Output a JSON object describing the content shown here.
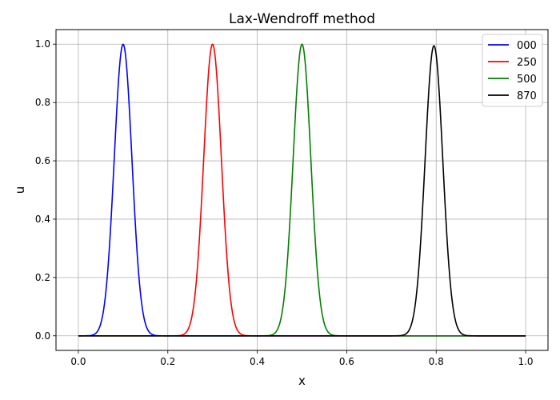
{
  "chart_data": {
    "type": "line",
    "title": "Lax-Wendroff method",
    "xlabel": "x",
    "ylabel": "u",
    "xlim": [
      -0.05,
      1.05
    ],
    "ylim": [
      -0.05,
      1.05
    ],
    "xticks": [
      0.0,
      0.2,
      0.4,
      0.6,
      0.8,
      1.0
    ],
    "xtick_labels": [
      "0.0",
      "0.2",
      "0.4",
      "0.6",
      "0.8",
      "1.0"
    ],
    "yticks": [
      0.0,
      0.2,
      0.4,
      0.6,
      0.8,
      1.0
    ],
    "ytick_labels": [
      "0.0",
      "0.2",
      "0.4",
      "0.6",
      "0.8",
      "1.0"
    ],
    "grid": true,
    "legend_position": "top-right",
    "series": [
      {
        "name": "000",
        "color": "#0000ff",
        "center": 0.1,
        "peak": 1.0,
        "width": 0.028
      },
      {
        "name": "250",
        "color": "#ff0000",
        "center": 0.3,
        "peak": 1.0,
        "width": 0.028
      },
      {
        "name": "500",
        "color": "#008000",
        "center": 0.5,
        "peak": 1.0,
        "width": 0.028
      },
      {
        "name": "870",
        "color": "#000000",
        "center": 0.795,
        "peak": 0.995,
        "width": 0.028
      }
    ]
  }
}
